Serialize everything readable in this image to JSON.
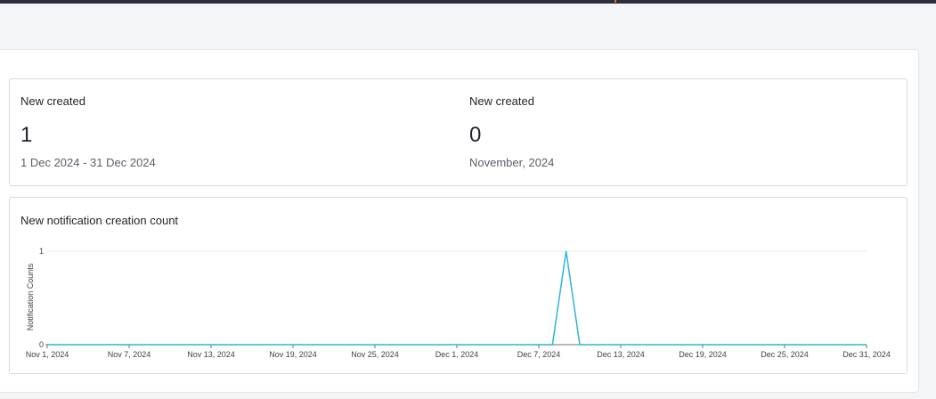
{
  "stats": [
    {
      "label": "New created",
      "value": "1",
      "period": "1 Dec 2024 - 31 Dec 2024"
    },
    {
      "label": "New created",
      "value": "0",
      "period": "November, 2024"
    }
  ],
  "chart": {
    "title": "New notification creation count"
  },
  "colors": {
    "series": "#2bb7d3",
    "grid": "#e8eaed",
    "axis": "#6b7078"
  },
  "chart_data": {
    "type": "line",
    "title": "New notification creation count",
    "xlabel": "",
    "ylabel": "Notification Counts",
    "x_ticks": [
      "Nov 1, 2024",
      "Nov 7, 2024",
      "Nov 13, 2024",
      "Nov 19, 2024",
      "Nov 25, 2024",
      "Dec 1, 2024",
      "Dec 7, 2024",
      "Dec 13, 2024",
      "Dec 19, 2024",
      "Dec 25, 2024",
      "Dec 31, 2024"
    ],
    "y_ticks": [
      0,
      1
    ],
    "xlim": [
      "2024-11-01",
      "2024-12-31"
    ],
    "ylim": [
      0,
      1
    ],
    "grid": true,
    "legend": "none",
    "series": [
      {
        "points": [
          {
            "x": "2024-11-01",
            "y": 0
          },
          {
            "x": "2024-12-08",
            "y": 0
          },
          {
            "x": "2024-12-09",
            "y": 1
          },
          {
            "x": "2024-12-10",
            "y": 0
          },
          {
            "x": "2024-12-31",
            "y": 0
          }
        ]
      }
    ]
  }
}
